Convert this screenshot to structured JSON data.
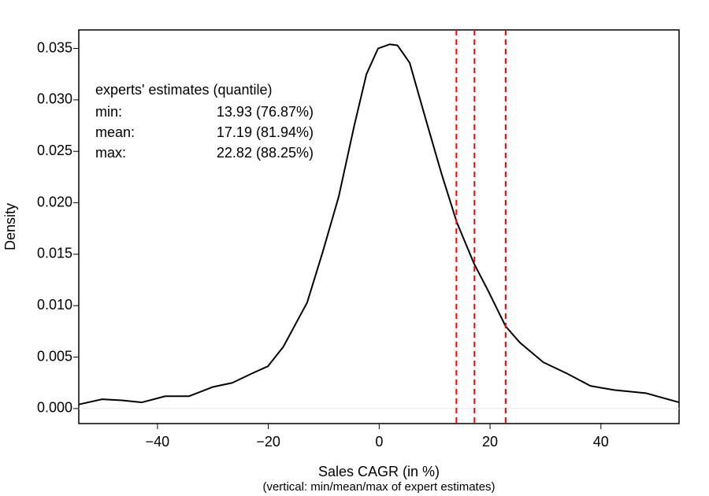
{
  "chart_data": {
    "type": "line",
    "x_label": "Sales CAGR (in %)",
    "subtitle": "(vertical: min/mean/max of expert estimates)",
    "y_label": "Density",
    "xlim": [
      -54.2,
      54.1
    ],
    "ylim": [
      -0.00146,
      0.0368
    ],
    "xticks": [
      {
        "value": -40,
        "label": "−40"
      },
      {
        "value": -20,
        "label": "−20"
      },
      0,
      20,
      40
    ],
    "yticks": [
      {
        "value": 0,
        "label": "0.000"
      },
      0.005,
      {
        "value": 0.01,
        "label": "0.010"
      },
      0.015,
      {
        "value": 0.02,
        "label": "0.020"
      },
      0.025,
      {
        "value": 0.03,
        "label": "0.030"
      },
      0.035
    ],
    "x": [
      -54.2,
      -50,
      -46.4,
      -42.8,
      -38.6,
      -34.3,
      -30,
      -26.5,
      -23,
      -20.1,
      -17.3,
      -13,
      -10.2,
      -7.3,
      -4.5,
      -2.3,
      -0.2,
      1.9,
      3.3,
      5.5,
      8.3,
      11.2,
      14,
      17.1,
      19.7,
      22.8,
      25.4,
      29.6,
      33.9,
      38.1,
      42.4,
      48.1,
      54.1
    ],
    "series": [
      {
        "color": "#000000",
        "values": [
          0.0004,
          0.0009,
          0.0008,
          0.0006,
          0.0012,
          0.0012,
          0.0021,
          0.0025,
          0.0034,
          0.0041,
          0.006,
          0.0103,
          0.0152,
          0.0206,
          0.0275,
          0.0325,
          0.035,
          0.0354,
          0.0353,
          0.0336,
          0.0283,
          0.0229,
          0.0181,
          0.0141,
          0.0114,
          0.008,
          0.0064,
          0.0045,
          0.0034,
          0.0022,
          0.0018,
          0.0015,
          0.0006
        ]
      }
    ],
    "vlines": {
      "title": "experts' estimates (quantile)",
      "color": "#ff0000",
      "labels": [
        "min:",
        "mean:",
        "max:"
      ],
      "values": [
        13.93,
        17.19,
        22.82
      ],
      "value_labels": [
        "13.93 (76.87%)",
        "17.19 (81.94%)",
        "22.82 (88.25%)"
      ]
    }
  }
}
